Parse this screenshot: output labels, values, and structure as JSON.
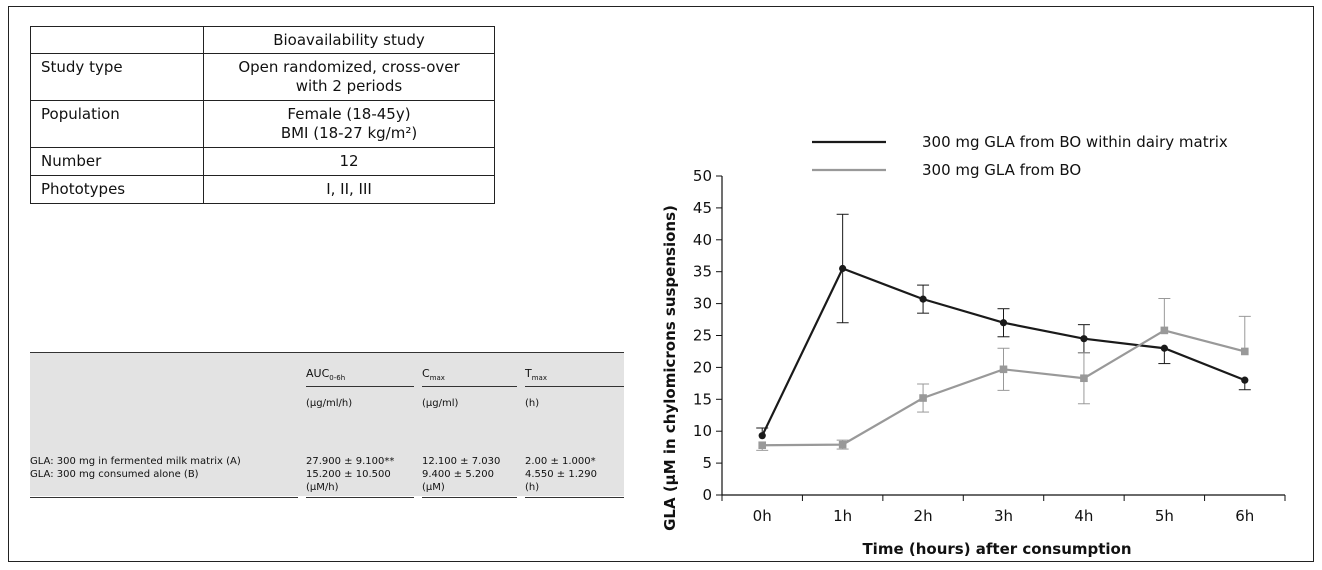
{
  "study_table": {
    "header": [
      "",
      "Bioavailability study"
    ],
    "rows": [
      {
        "label": "Study type",
        "lines": [
          "Open randomized, cross-over",
          "with 2 periods"
        ]
      },
      {
        "label": "Population",
        "lines": [
          "Female (18-45y)",
          "BMI (18-27 kg/m²)"
        ]
      },
      {
        "label": "Number",
        "lines": [
          "12"
        ]
      },
      {
        "label": "Phototypes",
        "lines": [
          "I, II, III"
        ]
      }
    ]
  },
  "pk_table": {
    "headers": [
      {
        "main": "AUC",
        "sub": "0-6h"
      },
      {
        "main": "C",
        "sub": "max"
      },
      {
        "main": "T",
        "sub": "max"
      }
    ],
    "units": [
      "(µg/ml/h)",
      "(µg/ml)",
      "(h)"
    ],
    "rows": [
      {
        "label": "GLA: 300 mg in fermented milk matrix (A)",
        "values": [
          "27.900 ± 9.100**",
          "12.100 ± 7.030",
          "2.00 ± 1.000*"
        ]
      },
      {
        "label": "GLA: 300 mg consumed alone (B)",
        "values": [
          "15.200 ± 10.500",
          "9.400 ± 5.200",
          "4.550 ± 1.290"
        ]
      }
    ],
    "footer_units": [
      "(µM/h)",
      "(µM)",
      "(h)"
    ]
  },
  "chart_data": {
    "type": "line",
    "categories": [
      "0h",
      "1h",
      "2h",
      "3h",
      "4h",
      "5h",
      "6h"
    ],
    "xlabel": "Time (hours) after consumption",
    "ylabel": "GLA (µM in chylomicrons suspensions)",
    "ylim": [
      0,
      50
    ],
    "yticks": [
      0,
      5,
      10,
      15,
      20,
      25,
      30,
      35,
      40,
      45,
      50
    ],
    "grid": false,
    "legend_position": "top-right",
    "series": [
      {
        "name": "300 mg GLA from BO within dairy matrix",
        "color": "#1a1a1a",
        "marker": "circle",
        "values": [
          9.3,
          35.5,
          30.7,
          27.0,
          24.5,
          23.0,
          18.0
        ],
        "err": [
          1.2,
          8.5,
          2.2,
          2.2,
          2.2,
          2.4,
          1.5
        ],
        "err_dir": [
          "up",
          "both",
          "both",
          "both",
          "both",
          "down",
          "down"
        ]
      },
      {
        "name": "300 mg GLA from BO",
        "color": "#999999",
        "marker": "square",
        "values": [
          7.8,
          7.9,
          15.2,
          19.7,
          18.3,
          25.8,
          22.5
        ],
        "err": [
          0.8,
          0.7,
          2.2,
          3.3,
          4.0,
          5.0,
          5.5
        ],
        "err_dir": [
          "down",
          "both",
          "both",
          "both",
          "both",
          "up",
          "up"
        ]
      }
    ]
  }
}
